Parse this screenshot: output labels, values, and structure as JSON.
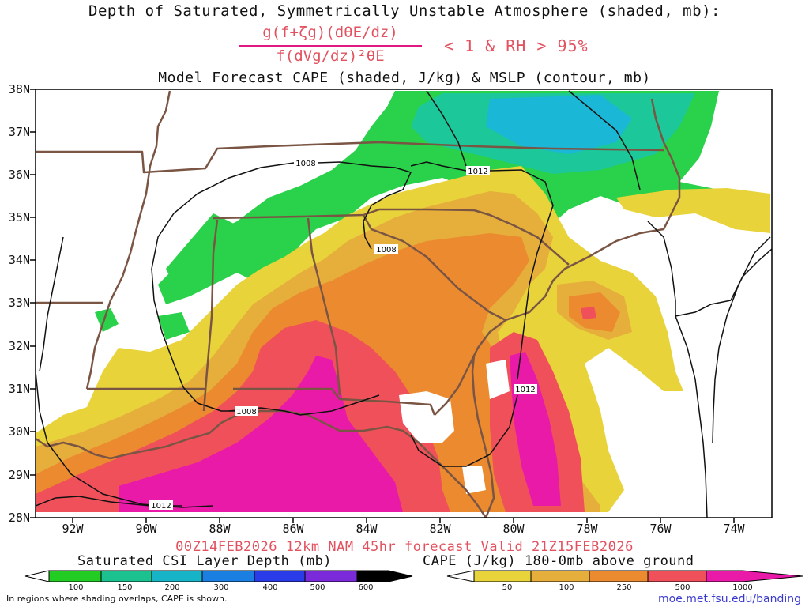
{
  "title": {
    "line1": "Depth of Saturated, Symmetrically Unstable Atmosphere (shaded, mb):",
    "formula_numerator": "g(f+ζg)(dθE/dz)",
    "formula_denominator": "f(dVg/dz)²θE",
    "formula_condition": "< 1 & RH > 95%",
    "line3": "Model Forecast CAPE (shaded, J/kg) & MSLP (contour, mb)"
  },
  "map": {
    "lat_labels": [
      "38N",
      "37N",
      "36N",
      "35N",
      "34N",
      "33N",
      "32N",
      "31N",
      "30N",
      "29N",
      "28N"
    ],
    "lon_labels": [
      "92W",
      "90W",
      "88W",
      "86W",
      "84W",
      "82W",
      "80W",
      "78W",
      "76W",
      "74W"
    ],
    "isobar_labels": [
      "1008",
      "1012",
      "1008",
      "1012",
      "1008",
      "1012"
    ],
    "colors": {
      "land_border": "#7a5544",
      "isobar": "#111111",
      "csi_green": "#29d24a",
      "csi_teal": "#1cc79a",
      "csi_cyan": "#1bb7d6",
      "cape_yellow": "#e8d43a",
      "cape_gold": "#e6ae3a",
      "cape_orange": "#eb8a2f",
      "cape_red": "#f0505a",
      "cape_magenta": "#ea1aa8"
    }
  },
  "footer": {
    "valid": "00Z14FEB2026 12km NAM 45hr forecast Valid 21Z15FEB2026",
    "csi_title": "Saturated CSI Layer Depth (mb)",
    "csi_ticks": [
      "100",
      "150",
      "200",
      "300",
      "400",
      "500",
      "600"
    ],
    "csi_colors": [
      "#ffffff",
      "#22cc22",
      "#1bc290",
      "#17b4c8",
      "#1a7fe0",
      "#2a3ce8",
      "#7a2ad8",
      "#000000"
    ],
    "cape_title": "CAPE (J/kg) 180-0mb above ground",
    "cape_ticks": [
      "50",
      "100",
      "250",
      "500",
      "1000"
    ],
    "cape_colors": [
      "#ffffff",
      "#e8d43a",
      "#e6ae3a",
      "#eb8a2f",
      "#f0505a",
      "#ea1aa8"
    ],
    "note": "In regions where shading overlaps, CAPE is shown.",
    "site": "moe.met.fsu.edu/banding"
  }
}
